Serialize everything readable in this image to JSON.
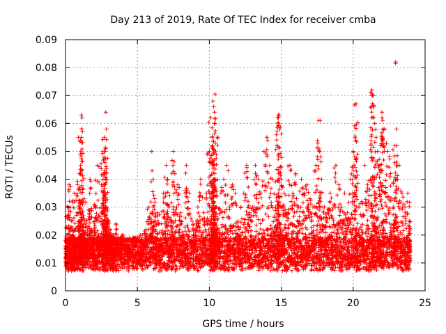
{
  "chart_data": {
    "type": "scatter",
    "title": "Day 213 of 2019, Rate Of TEC Index for receiver cmba",
    "xlabel": "GPS time / hours",
    "ylabel": "ROTI / TECUs",
    "xlim": [
      0,
      25
    ],
    "ylim": [
      0,
      0.09
    ],
    "xticks": [
      0,
      5,
      10,
      15,
      20,
      25
    ],
    "xtick_labels": [
      "0",
      "5",
      "10",
      "15",
      "20",
      "25"
    ],
    "yticks": [
      0,
      0.01,
      0.02,
      0.03,
      0.04,
      0.05,
      0.06,
      0.07,
      0.08,
      0.09
    ],
    "ytick_labels": [
      "0",
      "0.01",
      "0.02",
      "0.03",
      "0.04",
      "0.05",
      "0.06",
      "0.07",
      "0.08",
      "0.09"
    ],
    "grid": true,
    "marker": "+",
    "color": "#ff0000",
    "series": [
      {
        "name": "ROTI",
        "x": [
          0.05,
          0.12,
          0.2,
          0.25,
          0.3,
          0.35,
          0.4,
          0.5,
          0.55,
          0.6,
          0.7,
          0.8,
          0.9,
          1.0,
          1.05,
          1.1,
          1.15,
          1.2,
          1.3,
          1.4,
          1.5,
          1.6,
          1.7,
          1.8,
          1.9,
          2.0,
          2.1,
          2.2,
          2.3,
          2.4,
          2.5,
          2.6,
          2.7,
          2.75,
          2.8,
          2.85,
          2.9,
          3.0,
          3.1,
          3.2,
          3.3,
          3.4,
          3.5,
          3.6,
          3.8,
          4.0,
          4.2,
          4.4,
          4.6,
          4.8,
          5.0,
          5.2,
          5.4,
          5.6,
          5.8,
          6.0,
          6.1,
          6.2,
          6.4,
          6.6,
          6.8,
          7.0,
          7.1,
          7.2,
          7.4,
          7.5,
          7.6,
          7.8,
          8.0,
          8.2,
          8.4,
          8.6,
          8.8,
          9.0,
          9.2,
          9.4,
          9.6,
          9.8,
          10.0,
          10.1,
          10.2,
          10.25,
          10.3,
          10.35,
          10.4,
          10.5,
          10.6,
          10.8,
          11.0,
          11.2,
          11.4,
          11.6,
          11.8,
          12.0,
          12.2,
          12.4,
          12.6,
          12.8,
          13.0,
          13.2,
          13.4,
          13.6,
          13.8,
          14.0,
          14.2,
          14.4,
          14.6,
          14.7,
          14.8,
          14.9,
          15.0,
          15.2,
          15.4,
          15.6,
          15.8,
          16.0,
          16.2,
          16.4,
          16.6,
          16.8,
          17.0,
          17.2,
          17.4,
          17.6,
          17.8,
          18.0,
          18.2,
          18.4,
          18.6,
          18.8,
          19.0,
          19.2,
          19.4,
          19.6,
          19.8,
          20.0,
          20.1,
          20.2,
          20.4,
          20.6,
          20.8,
          21.0,
          21.2,
          21.4,
          21.5,
          21.6,
          21.7,
          21.8,
          22.0,
          22.2,
          22.4,
          22.6,
          22.8,
          23.0,
          23.2,
          23.4,
          23.6,
          23.8,
          23.9,
          0.15,
          0.45,
          0.65,
          0.95,
          1.25,
          1.45,
          1.75,
          2.05,
          2.35,
          2.65,
          2.95,
          3.25,
          3.55,
          3.85,
          4.15,
          4.45,
          4.75,
          5.05,
          5.35,
          5.65,
          5.95,
          6.25,
          6.55,
          6.85,
          7.15,
          7.45,
          7.75,
          8.05,
          8.35,
          8.65,
          8.95,
          9.25,
          9.55,
          9.85,
          10.15,
          10.45,
          10.75,
          11.05,
          11.35,
          11.65,
          11.95,
          12.25,
          12.55,
          12.85,
          13.15,
          13.45,
          13.75,
          14.05,
          14.35,
          14.65,
          14.95,
          15.25,
          15.55,
          15.85,
          16.15,
          16.45,
          16.75,
          17.05,
          17.35,
          17.65,
          17.95,
          18.25,
          18.55,
          18.85,
          19.15,
          19.45,
          19.75,
          20.05,
          20.35,
          20.65,
          20.95,
          21.25,
          21.55,
          21.85,
          22.15,
          22.45,
          22.75,
          23.05,
          23.35,
          23.65,
          23.95,
          1.1,
          1.15,
          2.8,
          2.85,
          10.3,
          10.35,
          10.4,
          14.8,
          14.85,
          17.7,
          20.2,
          21.3,
          21.35,
          21.4,
          22.0,
          22.05,
          22.9,
          23.0,
          10.2,
          10.25,
          0.9,
          1.05,
          2.7,
          2.75
        ],
        "y": [
          0.012,
          0.03,
          0.018,
          0.038,
          0.022,
          0.015,
          0.025,
          0.02,
          0.014,
          0.035,
          0.016,
          0.028,
          0.019,
          0.03,
          0.045,
          0.055,
          0.024,
          0.018,
          0.033,
          0.021,
          0.016,
          0.029,
          0.04,
          0.022,
          0.017,
          0.031,
          0.026,
          0.045,
          0.02,
          0.018,
          0.038,
          0.05,
          0.055,
          0.046,
          0.03,
          0.022,
          0.017,
          0.025,
          0.021,
          0.016,
          0.02,
          0.015,
          0.024,
          0.018,
          0.014,
          0.02,
          0.016,
          0.018,
          0.015,
          0.019,
          0.014,
          0.02,
          0.017,
          0.022,
          0.03,
          0.05,
          0.04,
          0.025,
          0.028,
          0.018,
          0.035,
          0.045,
          0.04,
          0.03,
          0.025,
          0.05,
          0.042,
          0.038,
          0.028,
          0.02,
          0.045,
          0.035,
          0.025,
          0.022,
          0.03,
          0.04,
          0.028,
          0.035,
          0.05,
          0.062,
          0.055,
          0.068,
          0.045,
          0.06,
          0.04,
          0.03,
          0.055,
          0.035,
          0.04,
          0.045,
          0.03,
          0.038,
          0.035,
          0.025,
          0.03,
          0.035,
          0.045,
          0.028,
          0.03,
          0.045,
          0.04,
          0.035,
          0.05,
          0.055,
          0.045,
          0.04,
          0.03,
          0.052,
          0.063,
          0.058,
          0.04,
          0.035,
          0.028,
          0.045,
          0.035,
          0.042,
          0.03,
          0.04,
          0.035,
          0.038,
          0.033,
          0.03,
          0.045,
          0.061,
          0.04,
          0.03,
          0.028,
          0.035,
          0.03,
          0.045,
          0.038,
          0.03,
          0.035,
          0.028,
          0.04,
          0.05,
          0.048,
          0.067,
          0.03,
          0.032,
          0.045,
          0.038,
          0.04,
          0.07,
          0.06,
          0.055,
          0.05,
          0.045,
          0.062,
          0.058,
          0.05,
          0.042,
          0.03,
          0.04,
          0.045,
          0.035,
          0.03,
          0.035,
          0.025,
          0.009,
          0.011,
          0.008,
          0.013,
          0.01,
          0.012,
          0.009,
          0.011,
          0.008,
          0.012,
          0.01,
          0.009,
          0.011,
          0.013,
          0.01,
          0.012,
          0.008,
          0.011,
          0.009,
          0.012,
          0.01,
          0.013,
          0.011,
          0.009,
          0.012,
          0.01,
          0.008,
          0.011,
          0.013,
          0.01,
          0.009,
          0.012,
          0.011,
          0.01,
          0.013,
          0.009,
          0.012,
          0.01,
          0.011,
          0.008,
          0.012,
          0.01,
          0.013,
          0.009,
          0.011,
          0.01,
          0.012,
          0.008,
          0.011,
          0.013,
          0.01,
          0.009,
          0.012,
          0.011,
          0.01,
          0.013,
          0.009,
          0.012,
          0.01,
          0.011,
          0.008,
          0.012,
          0.01,
          0.013,
          0.009,
          0.011,
          0.01,
          0.012,
          0.008,
          0.011,
          0.013,
          0.01,
          0.009,
          0.012,
          0.011,
          0.01,
          0.013,
          0.009,
          0.012,
          0.01,
          0.011,
          0.063,
          0.062,
          0.064,
          0.058,
          0.066,
          0.064,
          0.06,
          0.062,
          0.063,
          0.061,
          0.067,
          0.072,
          0.07,
          0.066,
          0.064,
          0.058,
          0.052,
          0.058,
          0.052,
          0.051,
          0.055,
          0.054,
          0.05,
          0.05
        ]
      }
    ],
    "outliers": [
      {
        "x": 22.95,
        "y": 0.082
      },
      {
        "x": 22.95,
        "y": 0.0815
      },
      {
        "x": 10.4,
        "y": 0.0705
      }
    ]
  }
}
